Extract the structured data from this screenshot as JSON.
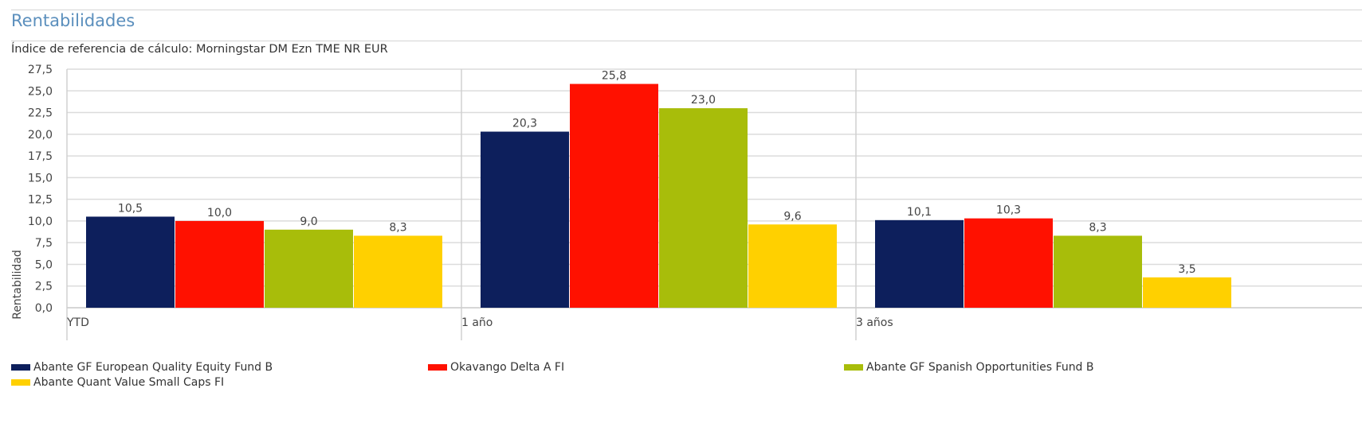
{
  "title": "Rentabilidades",
  "subtitle": "Índice de referencia de cálculo: Morningstar DM Ezn TME NR EUR",
  "chart_data": {
    "type": "bar",
    "categories": [
      "YTD",
      "1 año",
      "3 años"
    ],
    "ylabel": "Rentabilidad",
    "ylim": [
      0,
      27.5
    ],
    "yticks": [
      "0,0",
      "2,5",
      "5,0",
      "7,5",
      "10,0",
      "12,5",
      "15,0",
      "17,5",
      "20,0",
      "22,5",
      "25,0",
      "27,5"
    ],
    "grid": true,
    "legend_position": "bottom",
    "series": [
      {
        "name": "Abante GF European Quality Equity Fund B",
        "color": "#0d1f5c",
        "values": [
          10.5,
          20.3,
          10.1
        ],
        "labels": [
          "10,5",
          "20,3",
          "10,1"
        ]
      },
      {
        "name": "Okavango Delta A FI",
        "color": "#ff1100",
        "values": [
          10.0,
          25.8,
          10.3
        ],
        "labels": [
          "10,0",
          "25,8",
          "10,3"
        ]
      },
      {
        "name": "Abante GF Spanish Opportunities Fund B",
        "color": "#a8bd0a",
        "values": [
          9.0,
          23.0,
          8.3
        ],
        "labels": [
          "9,0",
          "23,0",
          "8,3"
        ]
      },
      {
        "name": "Abante Quant Value Small Caps FI",
        "color": "#ffd000",
        "values": [
          8.3,
          9.6,
          3.5
        ],
        "labels": [
          "8,3",
          "9,6",
          "3,5"
        ]
      }
    ]
  }
}
